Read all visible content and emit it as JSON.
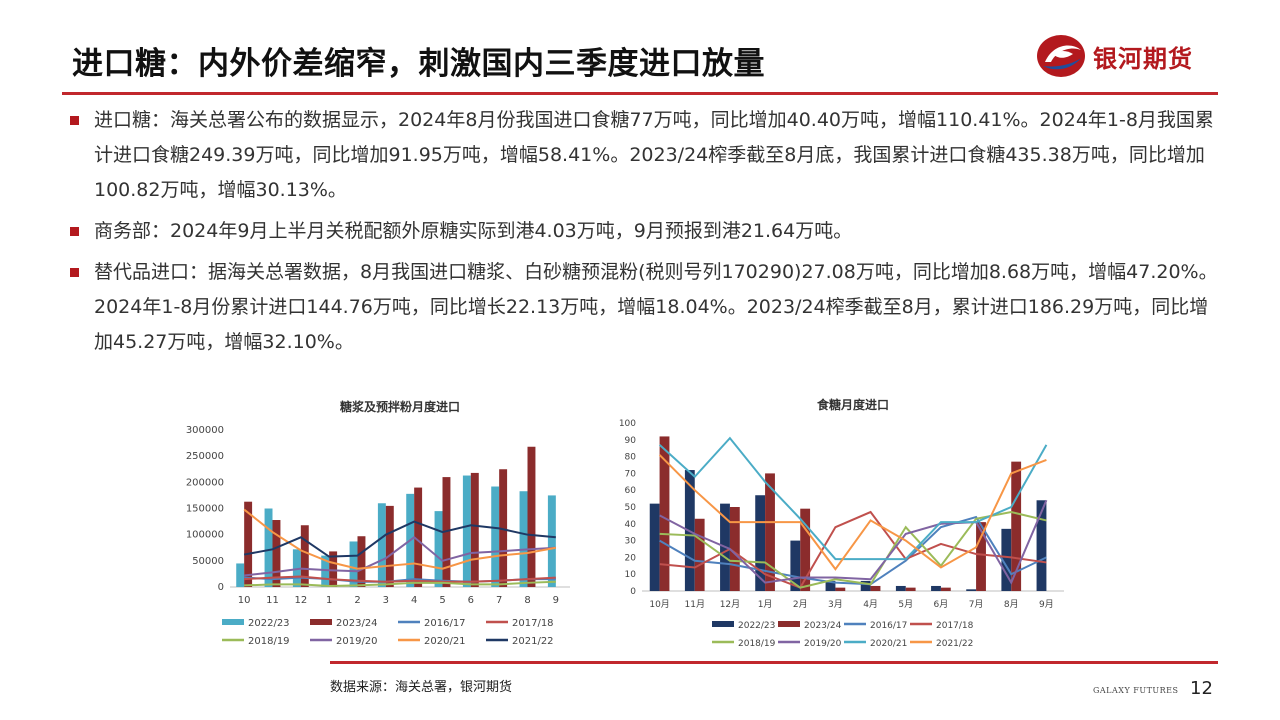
{
  "header": {
    "title": "进口糖：内外价差缩窄，刺激国内三季度进口放量",
    "logo_text": "银河期货"
  },
  "bullets": [
    "进口糖：海关总署公布的数据显示，2024年8月份我国进口食糖77万吨，同比增加40.40万吨，增幅110.41%。2024年1-8月我国累计进口食糖249.39万吨，同比增加91.95万吨，增幅58.41%。2023/24榨季截至8月底，我国累计进口食糖435.38万吨，同比增加100.82万吨，增幅30.13%。",
    "商务部：2024年9月上半月关税配额外原糖实际到港4.03万吨，9月预报到港21.64万吨。",
    "替代品进口：据海关总署数据，8月我国进口糖浆、白砂糖预混粉(税则号列170290)27.08万吨，同比增加8.68万吨，增幅47.20%。2024年1-8月份累计进口144.76万吨，同比增长22.13万吨，增幅18.04%。2023/24榨季截至8月，累计进口186.29万吨，同比增加45.27万吨，增幅32.10%。"
  ],
  "footer": {
    "source": "数据来源：海关总署，银河期货",
    "brand": "GALAXY FUTURES",
    "page": "12"
  },
  "colors": {
    "accent": "#c1272d",
    "logo_red": "#b3191e",
    "logo_blue": "#1f4e9c"
  },
  "chart_data": [
    {
      "type": "bar",
      "title": "糖浆及预拌粉月度进口",
      "categories": [
        "10",
        "11",
        "12",
        "1",
        "2",
        "3",
        "4",
        "5",
        "6",
        "7",
        "8",
        "9"
      ],
      "ylim": [
        0,
        300000
      ],
      "yticks": [
        0,
        50000,
        100000,
        150000,
        200000,
        250000,
        300000
      ],
      "legend_position": "bottom",
      "series": [
        {
          "name": "2022/23",
          "kind": "bar",
          "color": "#4bacc6",
          "values": [
            45000,
            150000,
            72000,
            60000,
            87000,
            160000,
            178000,
            145000,
            213000,
            192000,
            183000,
            175000
          ]
        },
        {
          "name": "2023/24",
          "kind": "bar",
          "color": "#8b2c2c",
          "values": [
            163000,
            128000,
            118000,
            68000,
            97000,
            155000,
            190000,
            210000,
            218000,
            225000,
            268000,
            null
          ]
        },
        {
          "name": "2016/17",
          "kind": "line",
          "color": "#4f81bd",
          "values": [
            18000,
            15000,
            18000,
            15000,
            10000,
            10000,
            15000,
            12000,
            10000,
            12000,
            15000,
            15000
          ]
        },
        {
          "name": "2017/18",
          "kind": "line",
          "color": "#c0504d",
          "values": [
            15000,
            18000,
            20000,
            15000,
            12000,
            10000,
            12000,
            10000,
            10000,
            12000,
            15000,
            18000
          ]
        },
        {
          "name": "2018/19",
          "kind": "line",
          "color": "#9bbb59",
          "values": [
            3000,
            5000,
            5000,
            2000,
            3000,
            5000,
            8000,
            8000,
            5000,
            5000,
            8000,
            10000
          ]
        },
        {
          "name": "2019/20",
          "kind": "line",
          "color": "#8064a2",
          "values": [
            22000,
            28000,
            35000,
            32000,
            30000,
            55000,
            95000,
            50000,
            65000,
            68000,
            72000,
            75000
          ]
        },
        {
          "name": "2020/21",
          "kind": "line",
          "color": "#f79646",
          "values": [
            148000,
            105000,
            70000,
            48000,
            35000,
            40000,
            45000,
            35000,
            52000,
            60000,
            65000,
            75000
          ]
        },
        {
          "name": "2021/22",
          "kind": "line",
          "color": "#1f3864",
          "values": [
            62000,
            72000,
            95000,
            58000,
            60000,
            100000,
            125000,
            105000,
            118000,
            112000,
            100000,
            95000
          ]
        }
      ]
    },
    {
      "type": "bar",
      "title": "食糖月度进口",
      "categories": [
        "10月",
        "11月",
        "12月",
        "1月",
        "2月",
        "3月",
        "4月",
        "5月",
        "6月",
        "7月",
        "8月",
        "9月"
      ],
      "ylim": [
        0,
        100
      ],
      "yticks": [
        0,
        10,
        20,
        30,
        40,
        50,
        60,
        70,
        80,
        90,
        100
      ],
      "legend_position": "bottom",
      "series": [
        {
          "name": "2022/23",
          "kind": "bar",
          "color": "#1f3864",
          "values": [
            52,
            72,
            52,
            57,
            30,
            6,
            6,
            3,
            3,
            1,
            37,
            54
          ]
        },
        {
          "name": "2023/24",
          "kind": "bar",
          "color": "#8b2c2c",
          "values": [
            92,
            43,
            50,
            70,
            49,
            2,
            3,
            2,
            2,
            41,
            77,
            null
          ]
        },
        {
          "name": "2016/17",
          "kind": "line",
          "color": "#4f81bd",
          "values": [
            30,
            18,
            16,
            12,
            8,
            5,
            4,
            18,
            38,
            44,
            10,
            20
          ]
        },
        {
          "name": "2017/18",
          "kind": "line",
          "color": "#c0504d",
          "values": [
            16,
            14,
            25,
            10,
            2,
            38,
            47,
            19,
            28,
            22,
            20,
            17
          ]
        },
        {
          "name": "2018/19",
          "kind": "line",
          "color": "#9bbb59",
          "values": [
            34,
            33,
            18,
            17,
            2,
            7,
            4,
            38,
            15,
            43,
            47,
            42
          ]
        },
        {
          "name": "2019/20",
          "kind": "line",
          "color": "#8064a2",
          "values": [
            45,
            34,
            25,
            5,
            8,
            8,
            7,
            34,
            40,
            41,
            5,
            54
          ]
        },
        {
          "name": "2020/21",
          "kind": "line",
          "color": "#4bacc6",
          "values": [
            87,
            68,
            91,
            65,
            43,
            19,
            19,
            19,
            41,
            41,
            50,
            87
          ]
        },
        {
          "name": "2021/22",
          "kind": "line",
          "color": "#f79646",
          "values": [
            81,
            60,
            41,
            41,
            41,
            13,
            42,
            30,
            14,
            26,
            70,
            78
          ]
        }
      ]
    }
  ]
}
